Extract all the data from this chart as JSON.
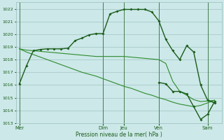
{
  "background_color": "#cce8e8",
  "plot_bg_color": "#cce8e8",
  "grid_color": "#99bbbb",
  "line_color_dark": "#1a5c1a",
  "line_color_mid": "#2d8b2d",
  "ylim": [
    1013,
    1022.5
  ],
  "yticks": [
    1013,
    1014,
    1015,
    1016,
    1017,
    1018,
    1019,
    1020,
    1021,
    1022
  ],
  "xlabel": "Pression niveau de la mer( hPa )",
  "day_labels": [
    "Mer",
    "Dim",
    "Jeu",
    "Ven",
    "Sam"
  ],
  "day_positions": [
    0,
    12,
    15,
    20,
    27
  ],
  "xlim": [
    -0.5,
    29
  ],
  "series1_x": [
    0,
    1,
    2,
    3,
    4,
    5,
    6,
    7,
    8,
    9,
    10,
    11,
    12,
    13,
    14,
    15,
    16,
    17,
    18,
    19,
    20,
    21,
    22,
    23,
    24,
    25,
    26,
    27,
    28
  ],
  "series1_y": [
    1016.1,
    1017.5,
    1018.7,
    1018.8,
    1018.85,
    1018.85,
    1018.85,
    1018.9,
    1019.5,
    1019.7,
    1019.95,
    1020.05,
    1020.05,
    1021.6,
    1021.8,
    1021.95,
    1021.95,
    1021.95,
    1021.95,
    1021.75,
    1021.05,
    1019.6,
    1018.7,
    1018.0,
    1019.1,
    1018.6,
    1016.0,
    1014.8,
    1014.6
  ],
  "series2_x": [
    0,
    1,
    2,
    3,
    4,
    5,
    6,
    7,
    8,
    9,
    10,
    11,
    12,
    13,
    14,
    15,
    16,
    17,
    18,
    19,
    20,
    21,
    22,
    23,
    24,
    25,
    26,
    27,
    28
  ],
  "series2_y": [
    1018.85,
    1018.75,
    1018.7,
    1018.65,
    1018.6,
    1018.55,
    1018.5,
    1018.45,
    1018.4,
    1018.35,
    1018.3,
    1018.25,
    1018.25,
    1018.25,
    1018.25,
    1018.25,
    1018.2,
    1018.15,
    1018.1,
    1018.05,
    1018.0,
    1017.7,
    1016.3,
    1015.5,
    1015.2,
    1014.85,
    1014.7,
    1014.75,
    1014.8
  ],
  "series3_x": [
    0,
    1,
    2,
    3,
    4,
    5,
    6,
    7,
    8,
    9,
    10,
    11,
    12,
    13,
    14,
    15,
    16,
    17,
    18,
    19,
    20,
    21,
    22,
    23,
    24,
    25,
    26,
    27,
    28
  ],
  "series3_y": [
    1018.85,
    1018.6,
    1018.4,
    1018.2,
    1018.0,
    1017.8,
    1017.6,
    1017.4,
    1017.2,
    1017.0,
    1016.85,
    1016.7,
    1016.5,
    1016.3,
    1016.1,
    1015.9,
    1015.75,
    1015.55,
    1015.35,
    1015.2,
    1015.0,
    1014.85,
    1014.65,
    1014.5,
    1014.4,
    1014.3,
    1014.4,
    1014.6,
    1014.8
  ],
  "series4_x": [
    20,
    21,
    22,
    23,
    24,
    25,
    26,
    27,
    28
  ],
  "series4_y": [
    1016.2,
    1016.1,
    1015.5,
    1015.5,
    1015.3,
    1014.3,
    1013.3,
    1013.7,
    1014.7
  ]
}
